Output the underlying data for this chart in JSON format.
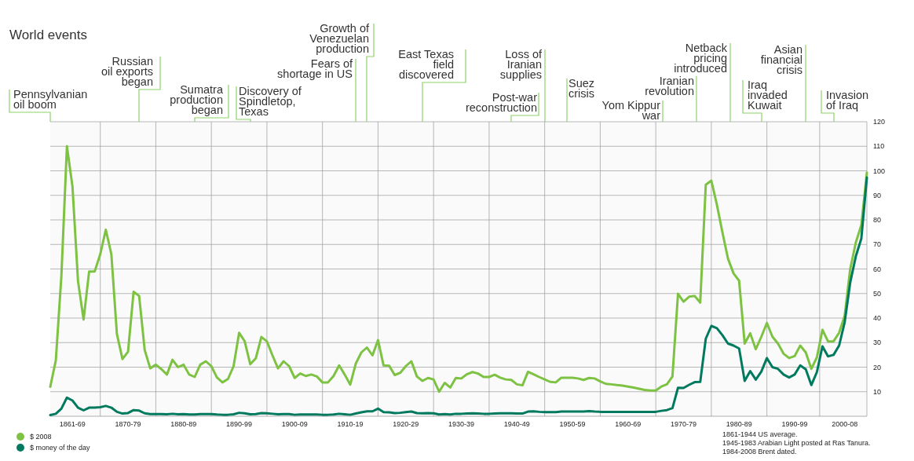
{
  "chart_data": {
    "type": "line",
    "title": "World events",
    "categories": [
      null,
      null,
      null,
      null,
      "1861-69",
      null,
      null,
      null,
      null,
      null,
      null,
      null,
      null,
      null,
      "1870-79",
      null,
      null,
      null,
      null,
      null,
      null,
      null,
      null,
      null,
      "1880-89",
      null,
      null,
      null,
      null,
      null,
      null,
      null,
      null,
      null,
      "1890-99",
      null,
      null,
      null,
      null,
      null,
      null,
      null,
      null,
      null,
      "1900-09",
      null,
      null,
      null,
      null,
      null,
      null,
      null,
      null,
      null,
      "1910-19",
      null,
      null,
      null,
      null,
      null,
      null,
      null,
      null,
      null,
      "1920-29",
      null,
      null,
      null,
      null,
      null,
      null,
      null,
      null,
      null,
      "1930-39",
      null,
      null,
      null,
      null,
      null,
      null,
      null,
      null,
      null,
      "1940-49",
      null,
      null,
      null,
      null,
      null,
      null,
      null,
      null,
      null,
      "1950-59",
      null,
      null,
      null,
      null,
      null,
      null,
      null,
      null,
      null,
      "1960-69",
      null,
      null,
      null,
      null,
      null,
      null,
      null,
      null,
      null,
      "1970-79",
      null,
      null,
      null,
      null,
      null,
      null,
      null,
      null,
      null,
      "1980-89",
      null,
      null,
      null,
      null,
      null,
      null,
      null,
      null,
      null,
      "1990-99",
      null,
      null,
      null,
      null,
      null,
      null,
      null,
      null,
      "2000-08",
      null,
      null,
      null,
      null
    ],
    "series": [
      {
        "name": "$ 2008",
        "color": "#7dc242",
        "values": [
          12,
          22.7,
          57,
          110,
          93.6,
          55,
          39.4,
          59,
          59,
          66,
          76,
          66,
          33.5,
          23.3,
          26.3,
          50.7,
          49,
          27,
          19.5,
          21,
          19.2,
          17,
          23,
          20,
          21,
          17,
          16,
          21,
          22.4,
          20.4,
          15.8,
          13.8,
          15.2,
          20.4,
          34,
          30.5,
          21.2,
          23.6,
          32.3,
          30.5,
          24.8,
          19.5,
          22.4,
          20.4,
          15.6,
          17.4,
          16.4,
          17,
          16.2,
          13.8,
          13.8,
          16.4,
          20.7,
          17,
          12.9,
          21.5,
          26,
          28,
          24.8,
          31,
          20.7,
          20.6,
          16.8,
          17.7,
          20.4,
          22.4,
          16.2,
          14.4,
          15.6,
          15,
          10,
          13.6,
          11.7,
          15.6,
          15.4,
          17.1,
          18,
          17.4,
          16,
          16,
          16.9,
          15.7,
          15,
          14.8,
          13,
          12.6,
          18.1,
          17.1,
          16,
          15,
          14,
          13.8,
          15.7,
          15.7,
          15.7,
          15.4,
          14.8,
          15.6,
          15.4,
          14.2,
          13.2,
          13,
          12.7,
          12.5,
          12.1,
          11.7,
          11.2,
          10.7,
          10.5,
          10.5,
          12.1,
          13,
          16.2,
          49.9,
          46.7,
          48.7,
          49,
          46.3,
          94.3,
          96,
          86.2,
          74.9,
          64.2,
          58.2,
          55.2,
          29.6,
          33.8,
          27.3,
          32.4,
          38,
          32.4,
          29.6,
          25.5,
          23.7,
          24.5,
          28.8,
          26,
          19.3,
          24,
          35.2,
          30.5,
          30.5,
          34,
          41,
          60,
          70.7,
          77.9,
          99.3
        ]
      },
      {
        "name": "$ money of the day",
        "color": "#007a5e",
        "values": [
          0.5,
          1,
          3.1,
          7.6,
          6.4,
          3.5,
          2.4,
          3.5,
          3.5,
          3.7,
          4.2,
          3.5,
          1.8,
          1.1,
          1.3,
          2.5,
          2.3,
          1.2,
          0.9,
          0.9,
          0.9,
          0.8,
          1,
          0.8,
          0.9,
          0.7,
          0.7,
          0.9,
          0.9,
          0.9,
          0.7,
          0.6,
          0.6,
          0.8,
          1.4,
          1.2,
          0.8,
          0.9,
          1.3,
          1.2,
          1,
          0.8,
          0.9,
          0.9,
          0.6,
          0.7,
          0.7,
          0.7,
          0.7,
          0.6,
          0.6,
          0.7,
          1,
          0.8,
          0.6,
          1.1,
          1.6,
          2,
          2,
          3.1,
          1.7,
          1.6,
          1.3,
          1.4,
          1.7,
          1.9,
          1.3,
          1.2,
          1.3,
          1.2,
          0.7,
          0.9,
          0.7,
          1,
          1,
          1.1,
          1.2,
          1.1,
          1,
          1,
          1.1,
          1.2,
          1.2,
          1.2,
          1.1,
          1.1,
          1.9,
          2,
          1.8,
          1.7,
          1.7,
          1.7,
          1.9,
          1.9,
          1.9,
          1.9,
          1.9,
          2.1,
          1.9,
          1.8,
          1.8,
          1.8,
          1.8,
          1.8,
          1.8,
          1.8,
          1.8,
          1.8,
          1.8,
          1.8,
          2.2,
          2.5,
          3.3,
          11.6,
          11.5,
          12.8,
          13.9,
          14,
          31.6,
          36.8,
          35.9,
          33,
          29.6,
          28.8,
          27.6,
          14.4,
          18.4,
          14.9,
          18.2,
          23.7,
          20,
          19.3,
          17,
          15.8,
          17,
          20.7,
          19.1,
          12.7,
          18,
          28.5,
          24.4,
          25,
          28.8,
          38.3,
          54.5,
          65.1,
          72.4,
          97.3
        ]
      }
    ],
    "ylim": [
      0,
      120
    ],
    "yticks": [
      10,
      20,
      30,
      40,
      50,
      60,
      70,
      80,
      90,
      100,
      110,
      120
    ],
    "grid": true,
    "legend": "bottom left",
    "marker": "none",
    "line_style": "solid",
    "annotations": [
      "Pennsylvanian\noil boom",
      "Russian\noil exports\nbegan",
      "Sumatra\nproduction\nbegan",
      "Discovery of\nSpindletop,\nTexas",
      "Fears of\nshortage in US",
      "Growth of\nVenezuelan\nproduction",
      "East Texas\nfield\ndiscovered",
      "Post-war\nreconstruction",
      "Loss of\nIranian\nsupplies",
      "Suez\ncrisis",
      "Yom Kippur\nwar",
      "Iranian\nrevolution",
      "Netback\npricing\nintroduced",
      "Iraq\ninvaded\nKuwait",
      "Asian\nfinancial\ncrisis",
      "Invasion\nof Iraq",
      "1861-1944 US average.\n1945-1983 Arabian Light posted at Ras Tanura.\n1984-2008 Brent dated."
    ]
  }
}
